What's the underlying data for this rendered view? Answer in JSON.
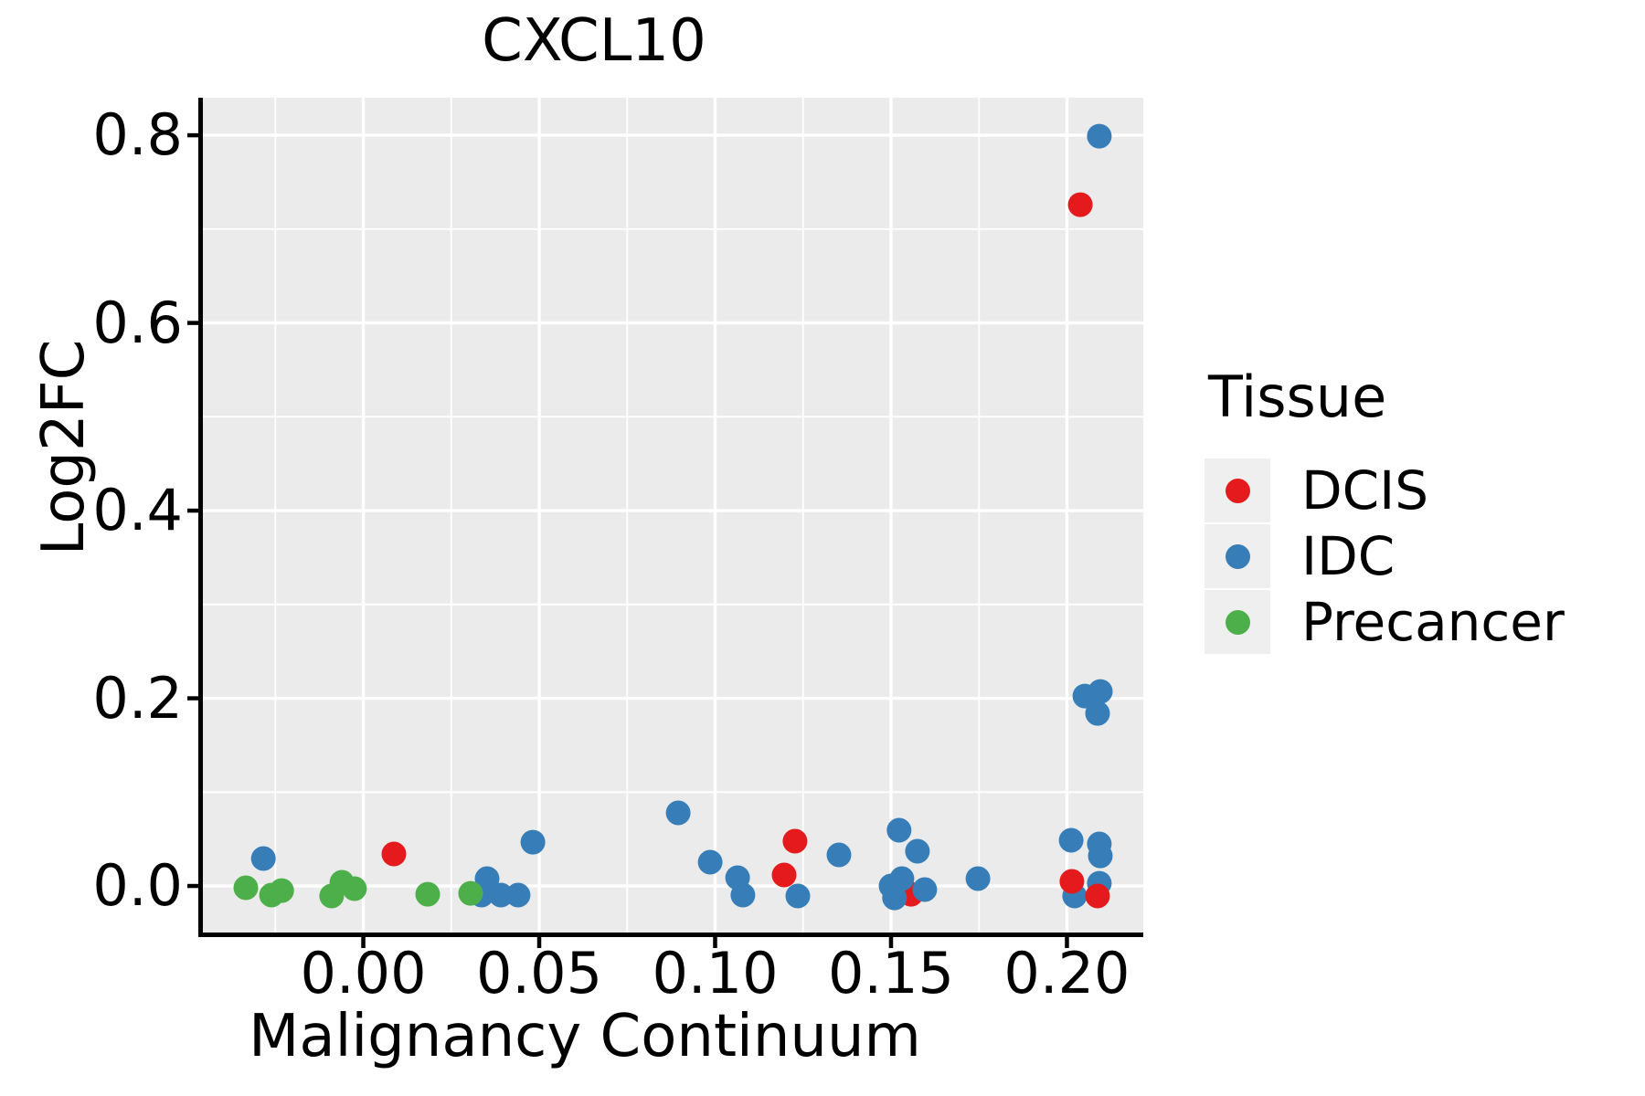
{
  "figure": {
    "title": "CXCL10"
  },
  "chart_data": {
    "type": "scatter",
    "title": "CXCL10",
    "xlabel": "Malignancy Continuum",
    "ylabel": "Log2FC",
    "xlim": [
      -0.0456,
      0.2217
    ],
    "ylim": [
      -0.0496,
      0.84
    ],
    "x_major_ticks": {
      "values": [
        0.0,
        0.05,
        0.1,
        0.15,
        0.2
      ],
      "labels": [
        "0.00",
        "0.05",
        "0.10",
        "0.15",
        "0.20"
      ]
    },
    "y_major_ticks": {
      "values": [
        0.0,
        0.2,
        0.4,
        0.6,
        0.8
      ],
      "labels": [
        "0.0",
        "0.2",
        "0.4",
        "0.6",
        "0.8"
      ]
    },
    "x_minor_ticks": [
      -0.025,
      0.025,
      0.075,
      0.125,
      0.175
    ],
    "y_minor_ticks": [
      0.1,
      0.3,
      0.5,
      0.7
    ],
    "grid": "major and minor white gridlines on gray panel",
    "panel_color": "#EBEBEB",
    "gridline_color": "#FFFFFF",
    "axis_color": "#000000",
    "legend": {
      "title": "Tissue",
      "position": "right",
      "entries": [
        {
          "label": "DCIS",
          "color": "#E41A1C"
        },
        {
          "label": "IDC",
          "color": "#377EB8"
        },
        {
          "label": "Precancer",
          "color": "#4DAF4A"
        }
      ]
    },
    "series": [
      {
        "name": "IDC",
        "color": "#377EB8",
        "points": [
          [
            -0.0284,
            0.0292
          ],
          [
            0.0336,
            -0.0097
          ],
          [
            0.0352,
            0.0078
          ],
          [
            0.0391,
            -0.0097
          ],
          [
            0.044,
            -0.0097
          ],
          [
            0.0482,
            0.0467
          ],
          [
            0.0895,
            0.0779
          ],
          [
            0.0986,
            0.0253
          ],
          [
            0.1064,
            0.0088
          ],
          [
            0.1079,
            -0.0097
          ],
          [
            0.1235,
            -0.0107
          ],
          [
            0.1352,
            0.0331
          ],
          [
            0.15,
            0.0
          ],
          [
            0.151,
            -0.0127
          ],
          [
            0.1523,
            0.0594
          ],
          [
            0.1531,
            0.0078
          ],
          [
            0.1575,
            0.037
          ],
          [
            0.1596,
            -0.0039
          ],
          [
            0.1747,
            0.0078
          ],
          [
            0.2012,
            0.0487
          ],
          [
            0.2022,
            -0.0107
          ],
          [
            0.2051,
            0.2024
          ],
          [
            0.2087,
            0.1839
          ],
          [
            0.2092,
            0.0448
          ],
          [
            0.2092,
            0.0029
          ],
          [
            0.2092,
            0.799
          ],
          [
            0.2095,
            0.2073
          ],
          [
            0.2095,
            0.0321
          ]
        ]
      },
      {
        "name": "Precancer",
        "color": "#4DAF4A",
        "points": [
          [
            -0.0334,
            -0.0019
          ],
          [
            -0.0261,
            -0.0097
          ],
          [
            -0.0232,
            -0.0049
          ],
          [
            -0.009,
            -0.0107
          ],
          [
            -0.0061,
            0.0039
          ],
          [
            -0.0025,
            -0.0029
          ],
          [
            0.0183,
            -0.0088
          ],
          [
            0.0305,
            -0.0078
          ]
        ]
      },
      {
        "name": "DCIS",
        "color": "#E41A1C",
        "points": [
          [
            0.0087,
            0.0341
          ],
          [
            0.1196,
            0.0117
          ],
          [
            0.1227,
            0.0477
          ],
          [
            0.1557,
            -0.0088,
            0
          ],
          [
            0.2014,
            0.0049
          ],
          [
            0.2038,
            0.726
          ],
          [
            0.2087,
            -0.0107
          ]
        ]
      }
    ]
  }
}
